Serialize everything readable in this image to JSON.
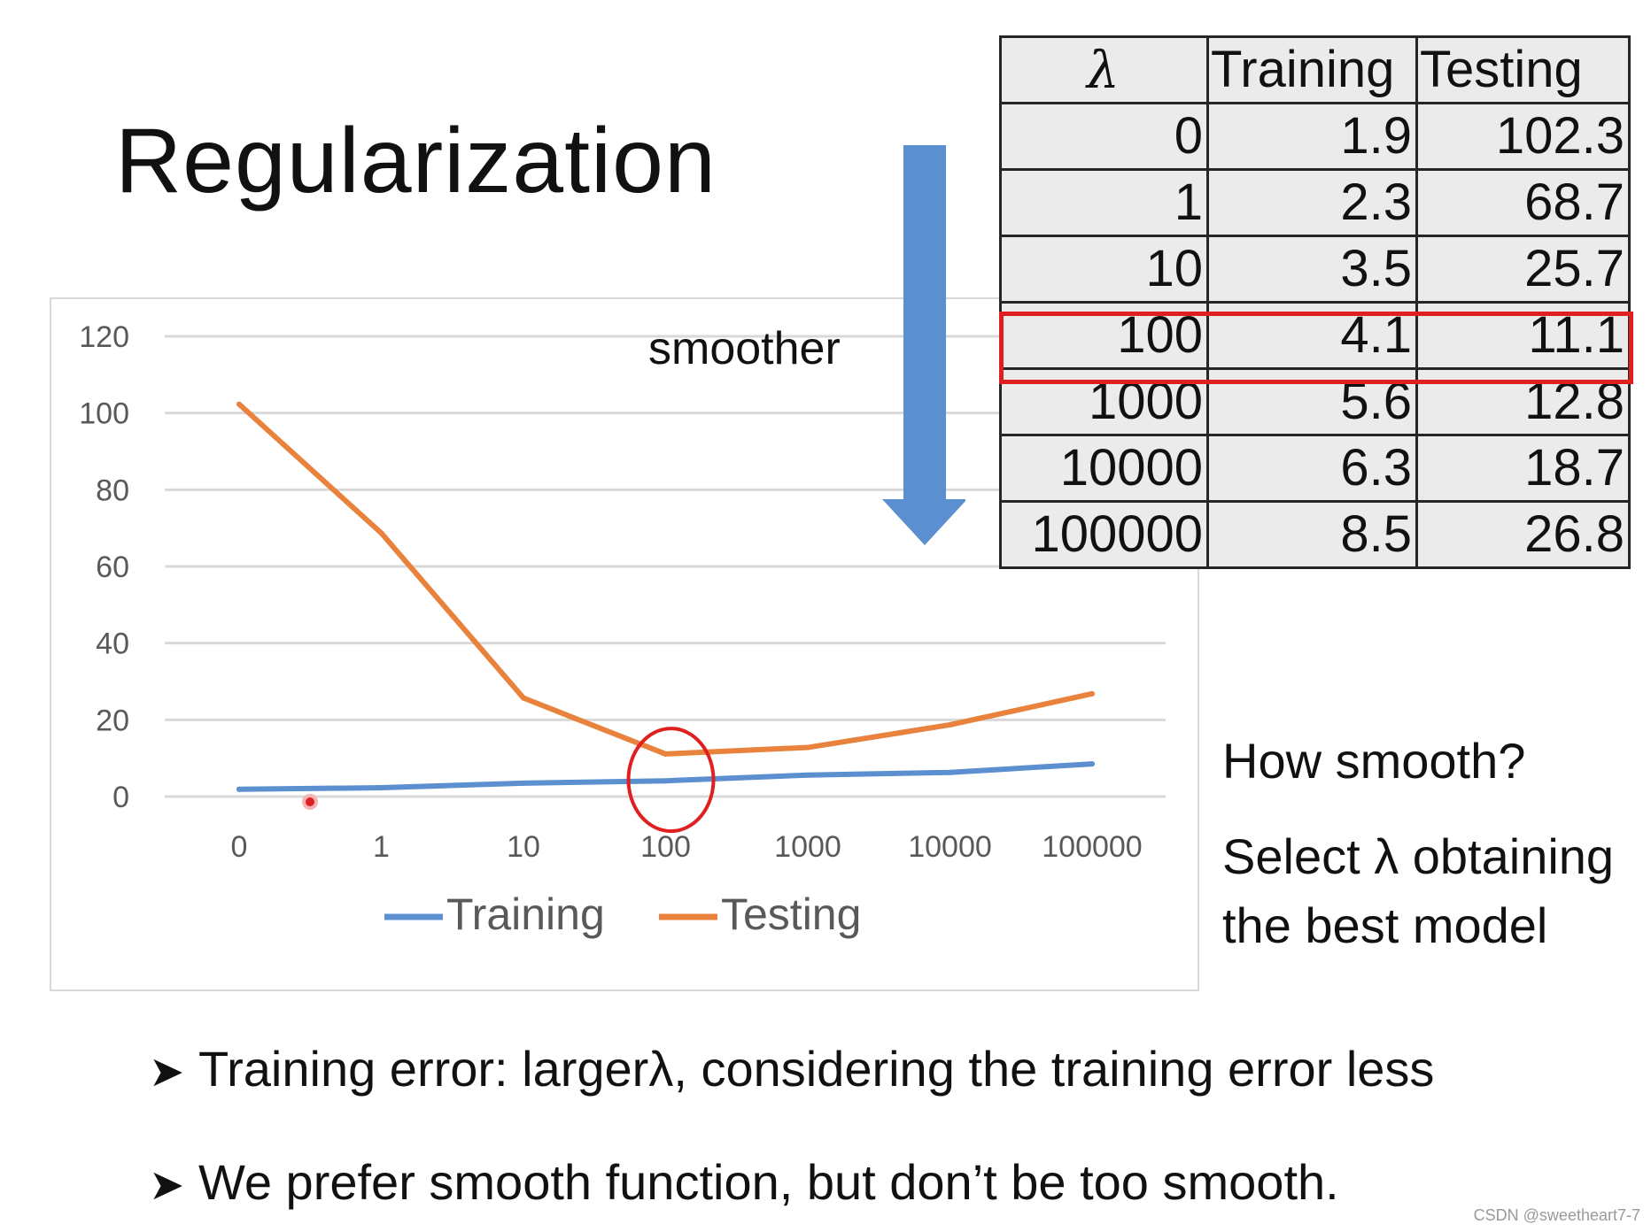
{
  "slide": {
    "title": "Regularization",
    "smoother_label": "smoother",
    "side_note": {
      "question": "How smooth?",
      "answer_line1": "Select λ obtaining",
      "answer_line2": "the best model"
    },
    "bullets": [
      "Training error: largerλ, considering the training error less",
      "We prefer smooth function, but don’t be too smooth."
    ],
    "watermark": "CSDN @sweetheart7-7"
  },
  "table": {
    "headers": [
      "λ",
      "Training",
      "Testing"
    ],
    "rows": [
      [
        "0",
        "1.9",
        "102.3"
      ],
      [
        "1",
        "2.3",
        "68.7"
      ],
      [
        "10",
        "3.5",
        "25.7"
      ],
      [
        "100",
        "4.1",
        "11.1"
      ],
      [
        "1000",
        "5.6",
        "12.8"
      ],
      [
        "10000",
        "6.3",
        "18.7"
      ],
      [
        "100000",
        "8.5",
        "26.8"
      ]
    ],
    "highlighted_row": 3
  },
  "colors": {
    "training": "#5b8fd0",
    "testing": "#e8823c",
    "highlight": "#e02020",
    "arrow": "#5b8fcf",
    "gridline": "#d9d9d9",
    "axis_text": "#595959"
  },
  "chart_data": {
    "type": "line",
    "categories": [
      "0",
      "1",
      "10",
      "100",
      "1000",
      "10000",
      "100000"
    ],
    "series": [
      {
        "name": "Training",
        "values": [
          1.9,
          2.3,
          3.5,
          4.1,
          5.6,
          6.3,
          8.5
        ]
      },
      {
        "name": "Testing",
        "values": [
          102.3,
          68.7,
          25.7,
          11.1,
          12.8,
          18.7,
          26.8
        ]
      }
    ],
    "yticks": [
      "0",
      "20",
      "40",
      "60",
      "80",
      "100",
      "120"
    ],
    "ylim": [
      0,
      120
    ],
    "grid": true,
    "legend_position": "bottom",
    "highlight_category": "100"
  }
}
